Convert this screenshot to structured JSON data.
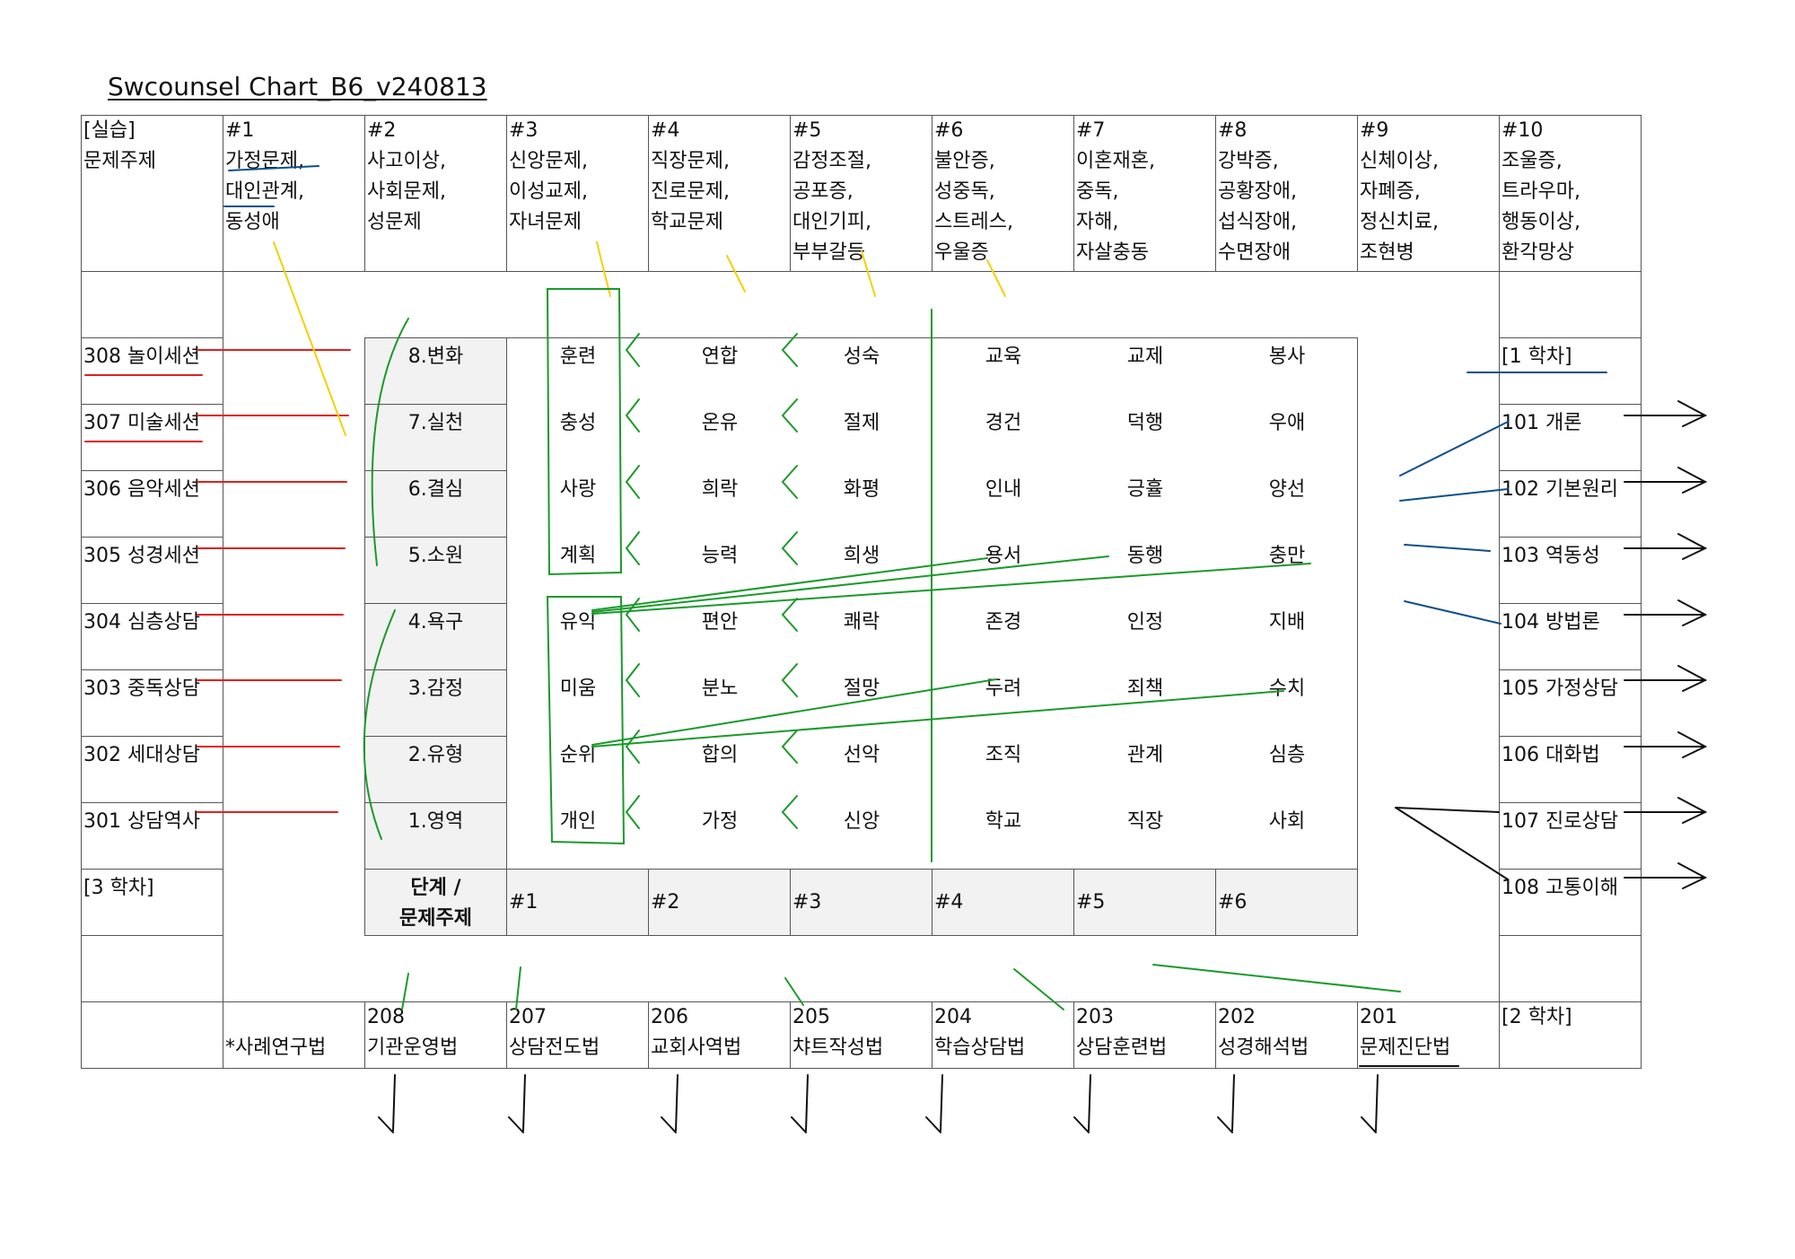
{
  "title": "Swcounsel Chart_B6_v240813",
  "corner": {
    "l1": "[실습]",
    "l2": "문제주제"
  },
  "topics": [
    {
      "num": "#1",
      "l1": "가정문제,",
      "l2": "대인관계,",
      "l3": "동성애",
      "l4": ""
    },
    {
      "num": "#2",
      "l1": "사고이상,",
      "l2": "사회문제,",
      "l3": "성문제",
      "l4": ""
    },
    {
      "num": "#3",
      "l1": "신앙문제,",
      "l2": "이성교제,",
      "l3": "자녀문제",
      "l4": ""
    },
    {
      "num": "#4",
      "l1": "직장문제,",
      "l2": "진로문제,",
      "l3": "학교문제",
      "l4": ""
    },
    {
      "num": "#5",
      "l1": "감정조절,",
      "l2": "공포증,",
      "l3": "대인기피,",
      "l4": "부부갈등"
    },
    {
      "num": "#6",
      "l1": "불안증,",
      "l2": "성중독,",
      "l3": "스트레스,",
      "l4": "우울증"
    },
    {
      "num": "#7",
      "l1": "이혼재혼,",
      "l2": "중독,",
      "l3": "자해,",
      "l4": "자살충동"
    },
    {
      "num": "#8",
      "l1": "강박증,",
      "l2": "공황장애,",
      "l3": "섭식장애,",
      "l4": "수면장애"
    },
    {
      "num": "#9",
      "l1": "신체이상,",
      "l2": "자폐증,",
      "l3": "정신치료,",
      "l4": "조현병"
    },
    {
      "num": "#10",
      "l1": "조울증,",
      "l2": "트라우마,",
      "l3": "행동이상,",
      "l4": "환각망상"
    }
  ],
  "left_sessions": [
    "308 놀이세션",
    "307 미술세션",
    "306 음악세션",
    "305 성경세션",
    "304 심층상담",
    "303 중독상담",
    "302 세대상담",
    "301 상담역사",
    "[3 학차]"
  ],
  "right_sessions": [
    "[1 학차]",
    "101 개론",
    "102 기본원리",
    "103 역동성",
    "104 방법론",
    "105 가정상담",
    "106 대화법",
    "107 진로상담",
    "108 고통이해"
  ],
  "stages": [
    "8.변화",
    "7.실천",
    "6.결심",
    "5.소원",
    "4.욕구",
    "3.감정",
    "2.유형",
    "1.영역"
  ],
  "grid": [
    [
      "훈련",
      "연합",
      "성숙",
      "교육",
      "교제",
      "봉사"
    ],
    [
      "충성",
      "온유",
      "절제",
      "경건",
      "덕행",
      "우애"
    ],
    [
      "사랑",
      "희락",
      "화평",
      "인내",
      "긍휼",
      "양선"
    ],
    [
      "계획",
      "능력",
      "희생",
      "용서",
      "동행",
      "충만"
    ],
    [
      "유익",
      "편안",
      "쾌락",
      "존경",
      "인정",
      "지배"
    ],
    [
      "미움",
      "분노",
      "절망",
      "두려",
      "죄책",
      "수치"
    ],
    [
      "순위",
      "합의",
      "선악",
      "조직",
      "관계",
      "심층"
    ],
    [
      "개인",
      "가정",
      "신앙",
      "학교",
      "직장",
      "사회"
    ]
  ],
  "stage_header": {
    "l1": "단계 /",
    "l2": "문제주제"
  },
  "col_labels": [
    "#1",
    "#2",
    "#3",
    "#4",
    "#5",
    "#6"
  ],
  "bottom": {
    "case_method": "*사례연구법",
    "items": [
      {
        "num": "208",
        "name": "기관운영법"
      },
      {
        "num": "207",
        "name": "상담전도법"
      },
      {
        "num": "206",
        "name": "교회사역법"
      },
      {
        "num": "205",
        "name": "챠트작성법"
      },
      {
        "num": "204",
        "name": "학습상담법"
      },
      {
        "num": "203",
        "name": "상담훈련법"
      },
      {
        "num": "202",
        "name": "성경해석법"
      },
      {
        "num": "201",
        "name": "문제진단법"
      }
    ],
    "term": "[2 학차]"
  }
}
